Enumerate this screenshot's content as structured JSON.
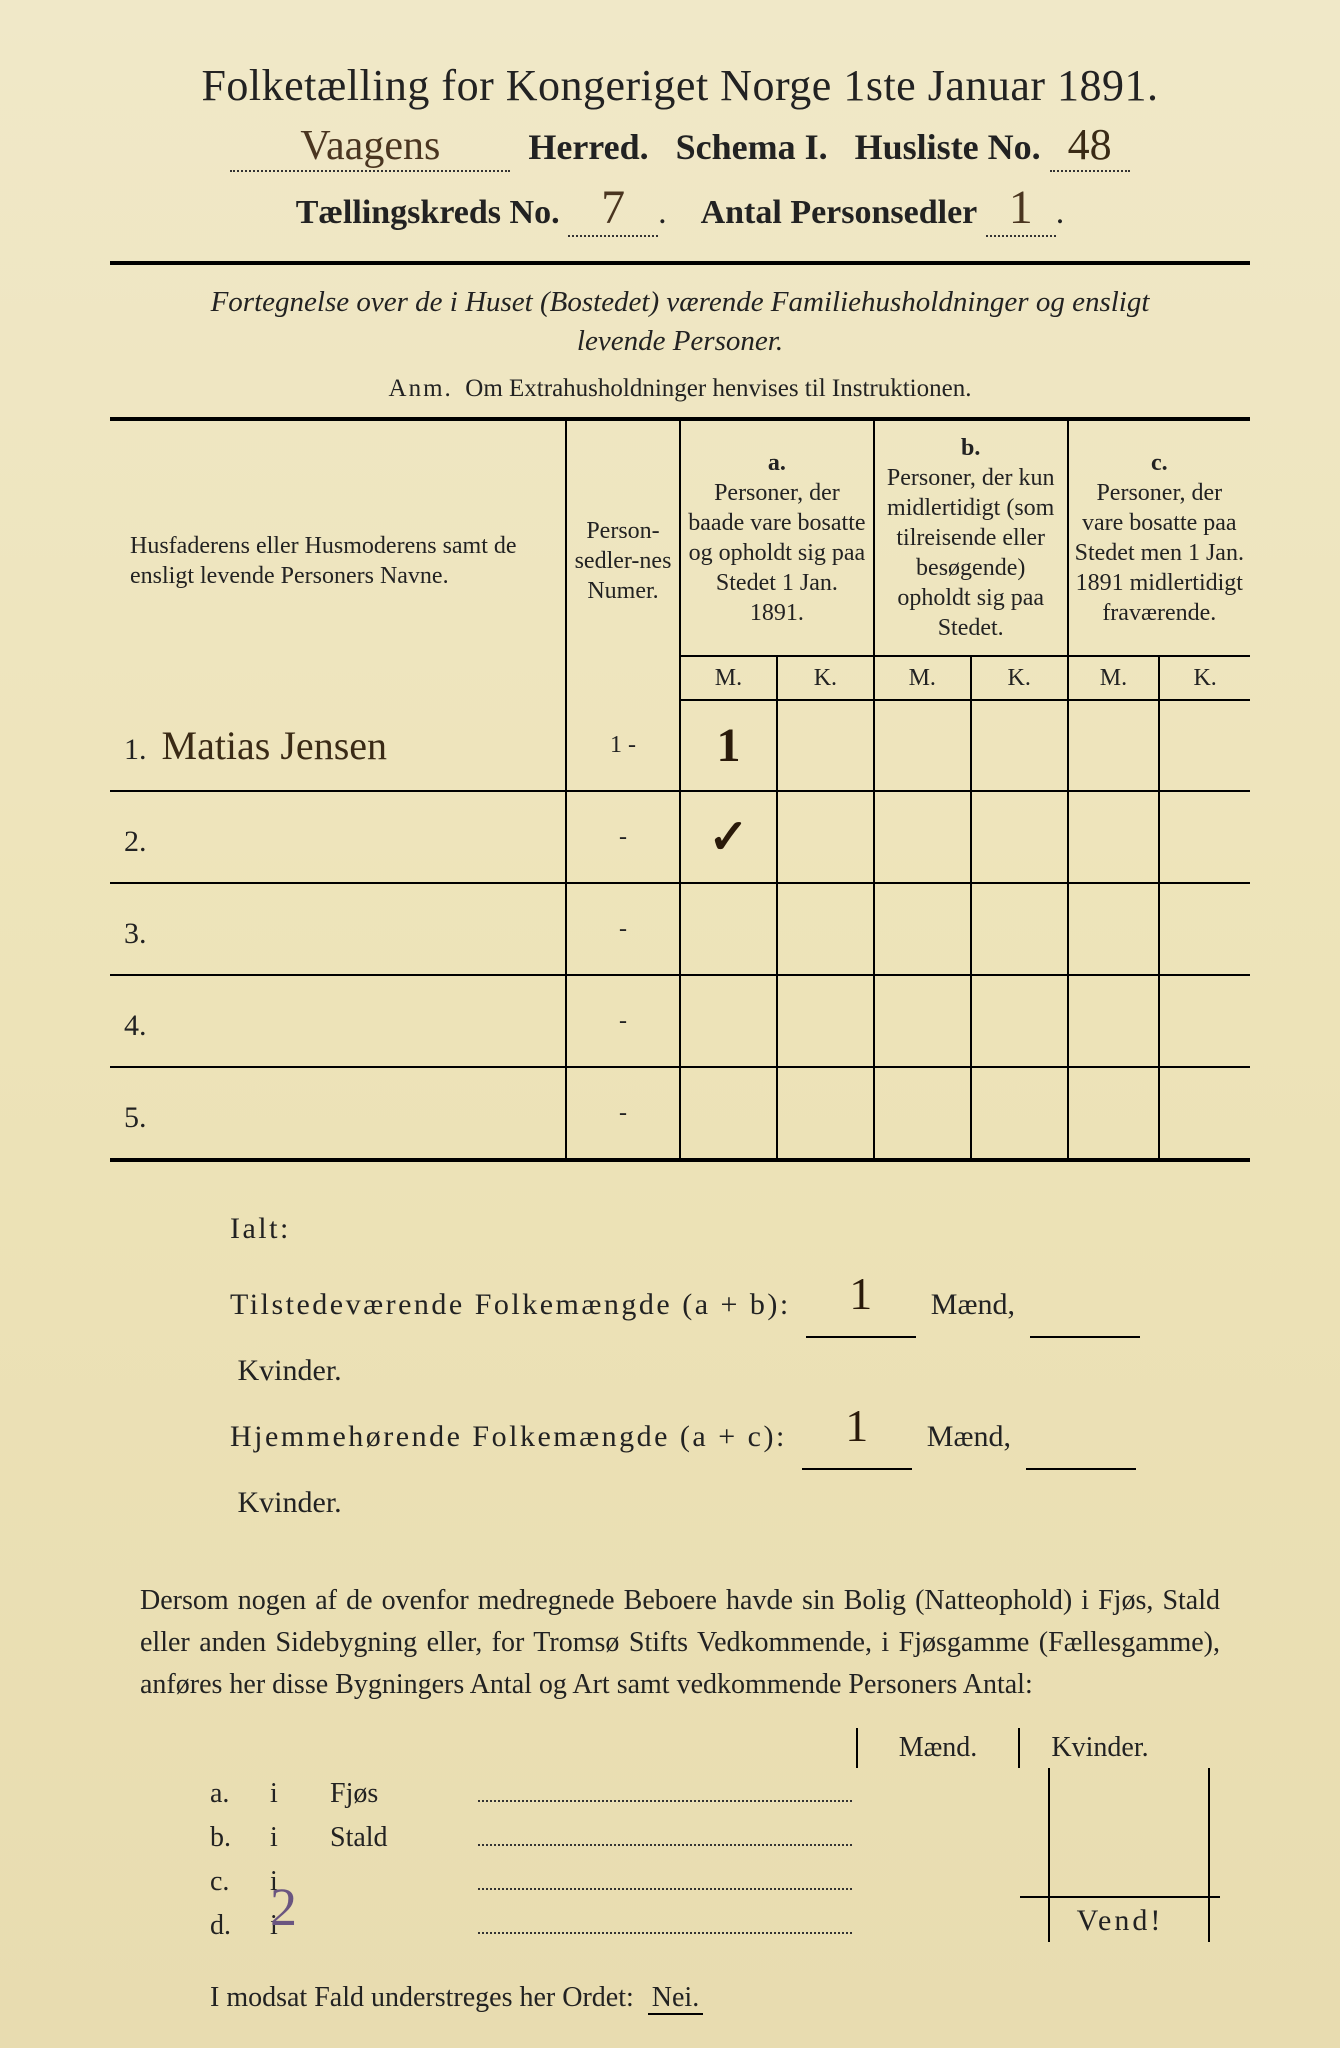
{
  "header": {
    "title": "Folketælling for Kongeriget Norge 1ste Januar 1891.",
    "herred_value": "Vaagens",
    "herred_label": "Herred.",
    "schema_label": "Schema I.",
    "husliste_label": "Husliste No.",
    "husliste_value": "48",
    "kreds_label": "Tællingskreds No.",
    "kreds_value": "7",
    "personsedler_label": "Antal Personsedler",
    "personsedler_value": "1"
  },
  "subtitle": {
    "line_italic1": "Fortegnelse over de i Huset (Bostedet) værende Familiehusholdninger og ensligt",
    "line_italic2": "levende Personer.",
    "anm_label": "Anm.",
    "anm_text": "Om Extrahusholdninger henvises til Instruktionen."
  },
  "table": {
    "col_names": "Husfaderens eller Husmoderens samt de ensligt levende Personers Navne.",
    "col_num": "Person-sedler-nes Numer.",
    "col_a_label": "a.",
    "col_a_text": "Personer, der baade vare bosatte og opholdt sig paa Stedet 1 Jan. 1891.",
    "col_b_label": "b.",
    "col_b_text": "Personer, der kun midlertidigt (som tilreisende eller besøgende) opholdt sig paa Stedet.",
    "col_c_label": "c.",
    "col_c_text": "Personer, der vare bosatte paa Stedet men 1 Jan. 1891 midlertidigt fraværende.",
    "mk_m": "M.",
    "mk_k": "K.",
    "rows": [
      {
        "num": "1.",
        "name": "Matias Jensen",
        "pnum": "1 -",
        "a_m": "1",
        "a_k": "",
        "b_m": "",
        "b_k": "",
        "c_m": "",
        "c_k": ""
      },
      {
        "num": "2.",
        "name": "",
        "pnum": "-",
        "a_m": "✓",
        "a_k": "",
        "b_m": "",
        "b_k": "",
        "c_m": "",
        "c_k": ""
      },
      {
        "num": "3.",
        "name": "",
        "pnum": "-",
        "a_m": "",
        "a_k": "",
        "b_m": "",
        "b_k": "",
        "c_m": "",
        "c_k": ""
      },
      {
        "num": "4.",
        "name": "",
        "pnum": "-",
        "a_m": "",
        "a_k": "",
        "b_m": "",
        "b_k": "",
        "c_m": "",
        "c_k": ""
      },
      {
        "num": "5.",
        "name": "",
        "pnum": "-",
        "a_m": "",
        "a_k": "",
        "b_m": "",
        "b_k": "",
        "c_m": "",
        "c_k": ""
      }
    ]
  },
  "ialt": {
    "label": "Ialt:",
    "line1_label": "Tilstedeværende Folkemængde (a + b):",
    "line1_m": "1",
    "line2_label": "Hjemmehørende Folkemængde (a + c):",
    "line2_m": "1",
    "maend": "Mænd,",
    "kvinder": "Kvinder."
  },
  "para": {
    "text": "Dersom nogen af de ovenfor medregnede Beboere havde sin Bolig (Natteophold) i Fjøs, Stald eller anden Sidebygning eller, for Tromsø Stifts Vedkommende, i Fjøsgamme (Fællesgamme), anføres her disse Bygningers Antal og Art samt vedkommende Personers Antal:"
  },
  "bottom": {
    "maend": "Mænd.",
    "kvinder": "Kvinder.",
    "rows": [
      {
        "a": "a.",
        "i": "i",
        "label": "Fjøs"
      },
      {
        "a": "b.",
        "i": "i",
        "label": "Stald"
      },
      {
        "a": "c.",
        "i": "i",
        "label": ""
      },
      {
        "a": "d.",
        "i": "i",
        "label": ""
      }
    ],
    "nei_line": "I modsat Fald understreges her Ordet:",
    "nei": "Nei.",
    "vend": "Vend!",
    "corner_hw": "2"
  }
}
